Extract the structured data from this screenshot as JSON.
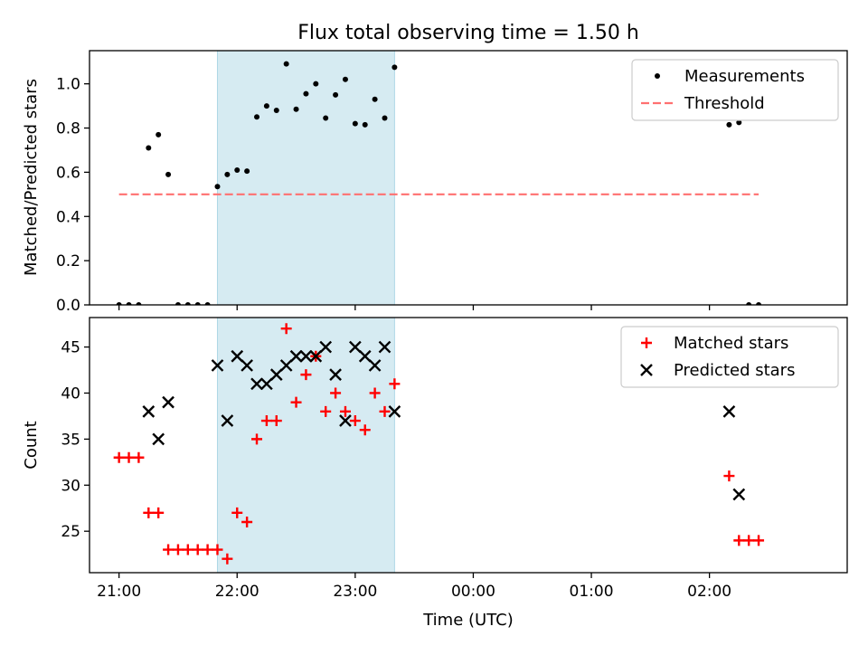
{
  "chart_data": [
    {
      "type": "scatter",
      "title": "Flux total observing time = 1.50 h",
      "ylabel": "Matched/Predicted stars",
      "xlabel": "",
      "xlim": [
        "20:45",
        "27:10"
      ],
      "ylim": [
        0,
        1.15
      ],
      "y_ticks": [
        "0.0",
        "0.2",
        "0.4",
        "0.6",
        "0.8",
        "1.0"
      ],
      "shaded_x_range": [
        "21:50",
        "23:20"
      ],
      "legend_position": "top-right",
      "series": [
        {
          "name": "Measurements",
          "marker": "dot",
          "color": "#000000",
          "points": [
            [
              "21:00",
              0.0
            ],
            [
              "21:05",
              0.0
            ],
            [
              "21:10",
              0.0
            ],
            [
              "21:15",
              0.71
            ],
            [
              "21:20",
              0.77
            ],
            [
              "21:25",
              0.59
            ],
            [
              "21:30",
              0.0
            ],
            [
              "21:35",
              0.0
            ],
            [
              "21:40",
              0.0
            ],
            [
              "21:45",
              0.0
            ],
            [
              "21:50",
              0.535
            ],
            [
              "21:55",
              0.59
            ],
            [
              "22:00",
              0.61
            ],
            [
              "22:05",
              0.605
            ],
            [
              "22:10",
              0.85
            ],
            [
              "22:15",
              0.9
            ],
            [
              "22:20",
              0.88
            ],
            [
              "22:25",
              1.09
            ],
            [
              "22:30",
              0.885
            ],
            [
              "22:35",
              0.955
            ],
            [
              "22:40",
              1.0
            ],
            [
              "22:45",
              0.845
            ],
            [
              "22:50",
              0.95
            ],
            [
              "22:55",
              1.02
            ],
            [
              "23:00",
              0.82
            ],
            [
              "23:05",
              0.815
            ],
            [
              "23:10",
              0.93
            ],
            [
              "23:15",
              0.845
            ],
            [
              "23:20",
              1.075
            ],
            [
              "26:10",
              0.815
            ],
            [
              "26:15",
              0.825
            ],
            [
              "26:20",
              0.0
            ],
            [
              "26:25",
              0.0
            ]
          ]
        },
        {
          "name": "Threshold",
          "style": "dashed-line",
          "color": "#ff7070",
          "points": [
            [
              "21:00",
              0.5
            ],
            [
              "26:25",
              0.5
            ]
          ]
        }
      ]
    },
    {
      "type": "scatter",
      "title": "",
      "ylabel": "Count",
      "xlabel": "Time (UTC)",
      "xlim": [
        "20:45",
        "27:10"
      ],
      "ylim": [
        20.5,
        48.2
      ],
      "y_ticks": [
        "25",
        "30",
        "35",
        "40",
        "45"
      ],
      "x_ticks": [
        {
          "t": "21:00",
          "label": "21:00"
        },
        {
          "t": "22:00",
          "label": "22:00"
        },
        {
          "t": "23:00",
          "label": "23:00"
        },
        {
          "t": "24:00",
          "label": "00:00"
        },
        {
          "t": "25:00",
          "label": "01:00"
        },
        {
          "t": "26:00",
          "label": "02:00"
        }
      ],
      "shaded_x_range": [
        "21:50",
        "23:20"
      ],
      "legend_position": "top-right",
      "series": [
        {
          "name": "Matched stars",
          "marker": "plus",
          "color": "#ff0000",
          "points": [
            [
              "21:00",
              33
            ],
            [
              "21:05",
              33
            ],
            [
              "21:10",
              33
            ],
            [
              "21:15",
              27
            ],
            [
              "21:20",
              27
            ],
            [
              "21:25",
              23
            ],
            [
              "21:30",
              23
            ],
            [
              "21:35",
              23
            ],
            [
              "21:40",
              23
            ],
            [
              "21:45",
              23
            ],
            [
              "21:50",
              23
            ],
            [
              "21:55",
              22
            ],
            [
              "22:00",
              27
            ],
            [
              "22:05",
              26
            ],
            [
              "22:10",
              35
            ],
            [
              "22:15",
              37
            ],
            [
              "22:20",
              37
            ],
            [
              "22:25",
              47
            ],
            [
              "22:30",
              39
            ],
            [
              "22:35",
              42
            ],
            [
              "22:40",
              44
            ],
            [
              "22:45",
              38
            ],
            [
              "22:50",
              40
            ],
            [
              "22:55",
              38
            ],
            [
              "23:00",
              37
            ],
            [
              "23:05",
              36
            ],
            [
              "23:10",
              40
            ],
            [
              "23:15",
              38
            ],
            [
              "23:20",
              41
            ],
            [
              "26:10",
              31
            ],
            [
              "26:15",
              24
            ],
            [
              "26:20",
              24
            ],
            [
              "26:25",
              24
            ]
          ]
        },
        {
          "name": "Predicted stars",
          "marker": "x",
          "color": "#000000",
          "points": [
            [
              "21:15",
              38
            ],
            [
              "21:20",
              35
            ],
            [
              "21:25",
              39
            ],
            [
              "21:50",
              43
            ],
            [
              "21:55",
              37
            ],
            [
              "22:00",
              44
            ],
            [
              "22:05",
              43
            ],
            [
              "22:10",
              41
            ],
            [
              "22:15",
              41
            ],
            [
              "22:20",
              42
            ],
            [
              "22:25",
              43
            ],
            [
              "22:30",
              44
            ],
            [
              "22:35",
              44
            ],
            [
              "22:40",
              44
            ],
            [
              "22:45",
              45
            ],
            [
              "22:50",
              42
            ],
            [
              "22:55",
              37
            ],
            [
              "23:00",
              45
            ],
            [
              "23:05",
              44
            ],
            [
              "23:10",
              43
            ],
            [
              "23:15",
              45
            ],
            [
              "23:20",
              38
            ],
            [
              "26:10",
              38
            ],
            [
              "26:15",
              29
            ]
          ]
        }
      ]
    }
  ]
}
